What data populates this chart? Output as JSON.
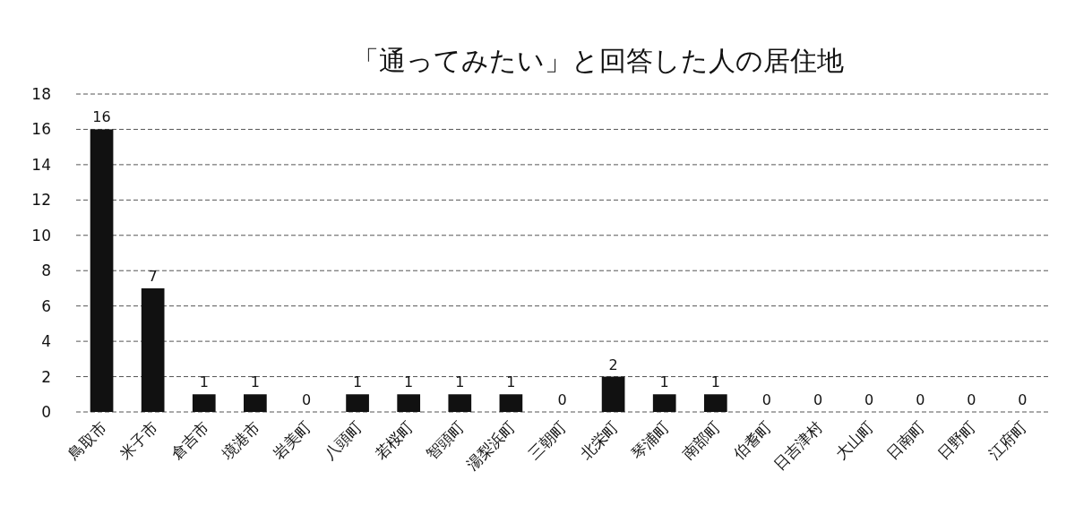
{
  "chart_data": {
    "type": "bar",
    "title": "「通ってみたい」と回答した人の居住地",
    "categories": [
      "鳥取市",
      "米子市",
      "倉吉市",
      "境港市",
      "岩美町",
      "八頭町",
      "若桜町",
      "智頭町",
      "湯梨浜町",
      "三朝町",
      "北栄町",
      "琴浦町",
      "南部町",
      "伯耆町",
      "日吉津村",
      "大山町",
      "日南町",
      "日野町",
      "江府町"
    ],
    "values": [
      16,
      7,
      1,
      1,
      0,
      1,
      1,
      1,
      1,
      0,
      2,
      1,
      1,
      0,
      0,
      0,
      0,
      0,
      0
    ],
    "color": "#111111",
    "ylim": [
      0,
      18
    ],
    "yticks": [
      0,
      2,
      4,
      6,
      8,
      10,
      12,
      14,
      16,
      18
    ],
    "grid": "y",
    "data_labels": true
  }
}
